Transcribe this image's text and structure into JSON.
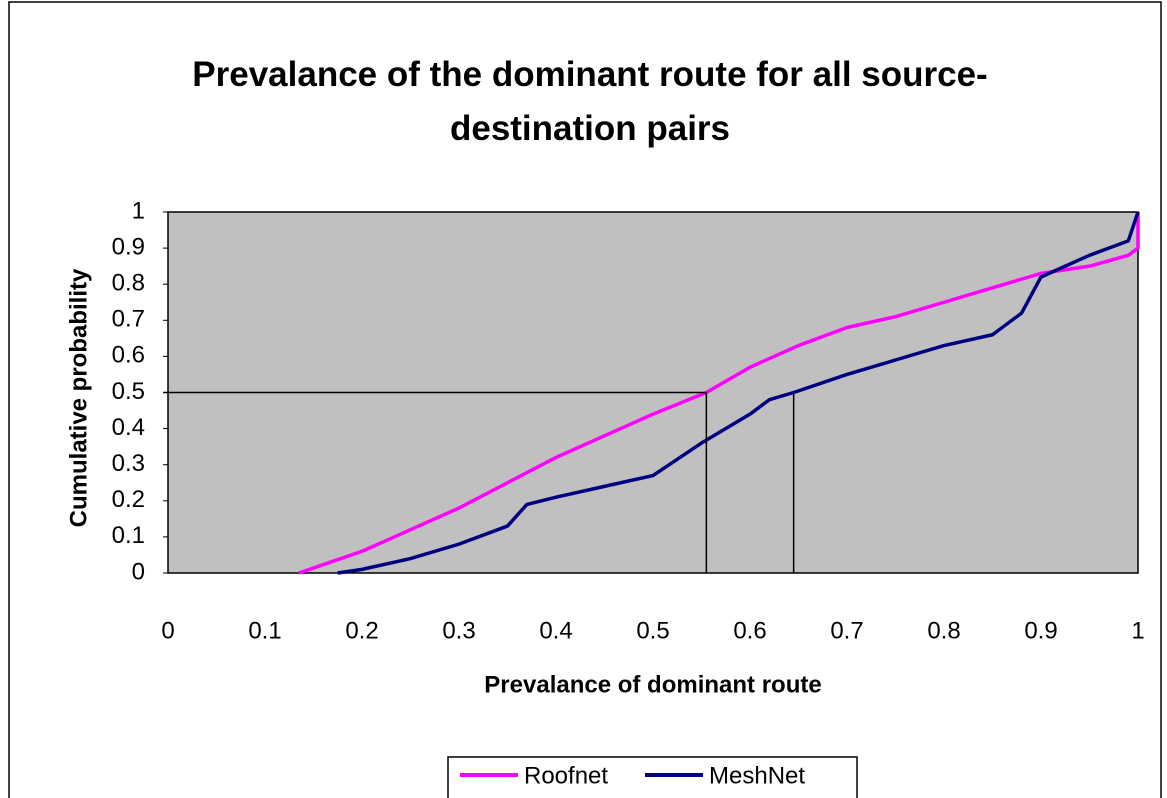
{
  "chart_data": {
    "type": "line",
    "title": "Prevalance of the dominant route for all source-destination pairs",
    "x_label": "Prevalance of dominant route",
    "y_label": "Cumulative probability",
    "xlim": [
      0,
      1
    ],
    "ylim": [
      0,
      1
    ],
    "xticks": [
      0,
      0.1,
      0.2,
      0.3,
      0.4,
      0.5,
      0.6,
      0.7,
      0.8,
      0.9,
      1
    ],
    "yticks": [
      0,
      0.1,
      0.2,
      0.3,
      0.4,
      0.5,
      0.6,
      0.7,
      0.8,
      0.9,
      1
    ],
    "plot_background": "#c0c0c0",
    "legend": "bottom",
    "series": [
      {
        "name": "Roofnet",
        "color": "#ff00ff",
        "x": [
          0.135,
          0.2,
          0.25,
          0.3,
          0.35,
          0.4,
          0.45,
          0.5,
          0.555,
          0.6,
          0.65,
          0.7,
          0.75,
          0.8,
          0.85,
          0.9,
          0.95,
          0.99,
          1,
          1
        ],
        "values": [
          0,
          0.06,
          0.12,
          0.18,
          0.25,
          0.32,
          0.38,
          0.44,
          0.5,
          0.57,
          0.63,
          0.68,
          0.71,
          0.75,
          0.79,
          0.83,
          0.85,
          0.88,
          0.9,
          1
        ]
      },
      {
        "name": "MeshNet",
        "color": "#000080",
        "x": [
          0.175,
          0.2,
          0.25,
          0.3,
          0.35,
          0.37,
          0.4,
          0.45,
          0.5,
          0.55,
          0.6,
          0.62,
          0.645,
          0.7,
          0.75,
          0.8,
          0.85,
          0.88,
          0.9,
          0.95,
          0.99,
          1
        ],
        "values": [
          0,
          0.01,
          0.04,
          0.08,
          0.13,
          0.19,
          0.21,
          0.24,
          0.27,
          0.36,
          0.44,
          0.48,
          0.5,
          0.55,
          0.59,
          0.63,
          0.66,
          0.72,
          0.82,
          0.88,
          0.92,
          1
        ]
      }
    ],
    "reference_lines": [
      {
        "x": [
          0,
          0.555
        ],
        "y": [
          0.5,
          0.5
        ]
      },
      {
        "x": [
          0.555,
          0.555
        ],
        "y": [
          0,
          0.5
        ]
      },
      {
        "x": [
          0.645,
          0.645
        ],
        "y": [
          0,
          0.5
        ]
      }
    ]
  }
}
